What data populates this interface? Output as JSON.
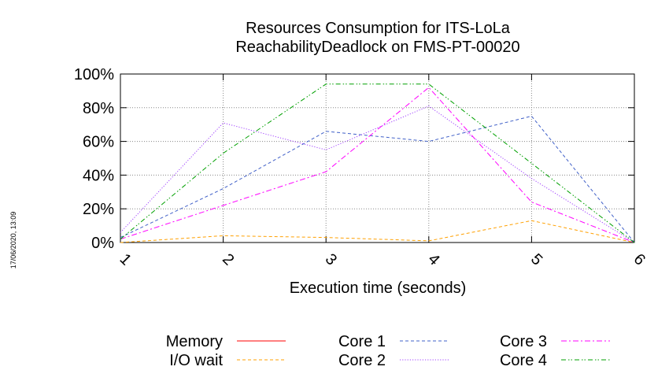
{
  "side_stamp": "17/06/2020, 13:09",
  "chart_data": {
    "type": "line",
    "title": [
      "Resources Consumption for ITS-LoLa",
      "ReachabilityDeadlock on FMS-PT-00020"
    ],
    "xlabel": "Execution time (seconds)",
    "ylabel": "",
    "xlim": [
      1,
      6
    ],
    "ylim": [
      0,
      100
    ],
    "x": [
      1,
      2,
      3,
      4,
      5,
      6
    ],
    "xticks": [
      "1",
      "2",
      "3",
      "4",
      "5",
      "6"
    ],
    "yticks": [
      "0%",
      "20%",
      "40%",
      "60%",
      "80%",
      "100%"
    ],
    "grid": true,
    "legend_position": "bottom",
    "series": [
      {
        "name": "Memory",
        "color": "#ff0000",
        "dash": "solid",
        "values": [
          null,
          null,
          null,
          null,
          null,
          null
        ]
      },
      {
        "name": "I/O wait",
        "color": "#ffa000",
        "dash": "dashed",
        "values": [
          0,
          4,
          3,
          1,
          13,
          0
        ]
      },
      {
        "name": "Core 1",
        "color": "#4060c8",
        "dash": "dashed",
        "values": [
          3,
          32,
          66,
          60,
          75,
          0
        ]
      },
      {
        "name": "Core 2",
        "color": "#a040ff",
        "dash": "dotted",
        "values": [
          6,
          71,
          55,
          81,
          38,
          0
        ]
      },
      {
        "name": "Core 3",
        "color": "#ff00ff",
        "dash": "dashdot",
        "values": [
          2,
          22,
          42,
          92,
          24,
          0
        ]
      },
      {
        "name": "Core 4",
        "color": "#00a000",
        "dash": "dashdotdot",
        "values": [
          2,
          53,
          94,
          94,
          47,
          0
        ]
      }
    ]
  }
}
